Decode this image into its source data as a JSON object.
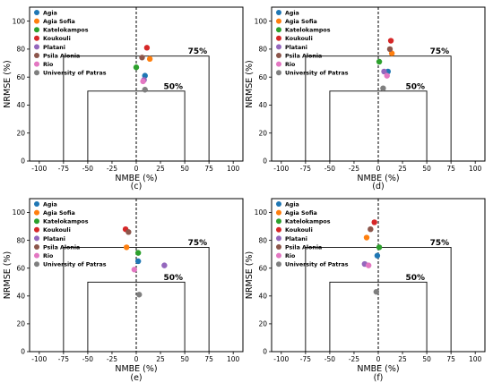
{
  "figure": {
    "legend_labels": [
      "Agia",
      "Agia Sofia",
      "Katelokampos",
      "Koukouli",
      "Platani",
      "Psila Alonia",
      "Rio",
      "University of Patras"
    ],
    "legend_colors": [
      "#1f77b4",
      "#ff7f0e",
      "#2ca02c",
      "#d62728",
      "#9467bd",
      "#8c564b",
      "#e377c2",
      "#7f7f7f"
    ]
  },
  "chart_data": [
    {
      "type": "scatter",
      "panel_label": "(c)",
      "xlabel": "NMBE (%)",
      "ylabel": "NRMSE (%)",
      "xlim": [
        -110,
        110
      ],
      "ylim": [
        0,
        110
      ],
      "xticks": [
        -100,
        -75,
        -50,
        -25,
        0,
        25,
        50,
        75,
        100
      ],
      "yticks": [
        0,
        20,
        40,
        60,
        80,
        100
      ],
      "threshold_labels": [
        "75%",
        "50%"
      ],
      "legend": "top-left",
      "series": [
        {
          "name": "Agia",
          "x": 9,
          "y": 61
        },
        {
          "name": "Agia Sofia",
          "x": 14,
          "y": 73
        },
        {
          "name": "Katelokampos",
          "x": 0,
          "y": 67
        },
        {
          "name": "Koukouli",
          "x": 11,
          "y": 81
        },
        {
          "name": "Platani",
          "x": 8,
          "y": 58
        },
        {
          "name": "Psila Alonia",
          "x": 6,
          "y": 74
        },
        {
          "name": "Rio",
          "x": 7,
          "y": 57
        },
        {
          "name": "University of Patras",
          "x": 9,
          "y": 51
        }
      ]
    },
    {
      "type": "scatter",
      "panel_label": "(d)",
      "xlabel": "NMBE (%)",
      "ylabel": "NRMSE (%)",
      "xlim": [
        -110,
        110
      ],
      "ylim": [
        0,
        110
      ],
      "xticks": [
        -100,
        -75,
        -50,
        -25,
        0,
        25,
        50,
        75,
        100
      ],
      "yticks": [
        0,
        20,
        40,
        60,
        80,
        100
      ],
      "threshold_labels": [
        "75%",
        "50%"
      ],
      "legend": "top-left",
      "series": [
        {
          "name": "Agia",
          "x": 10,
          "y": 64
        },
        {
          "name": "Agia Sofia",
          "x": 14,
          "y": 77
        },
        {
          "name": "Katelokampos",
          "x": 1,
          "y": 71
        },
        {
          "name": "Koukouli",
          "x": 13,
          "y": 86
        },
        {
          "name": "Platani",
          "x": 6,
          "y": 64
        },
        {
          "name": "Psila Alonia",
          "x": 12,
          "y": 80
        },
        {
          "name": "Rio",
          "x": 9,
          "y": 61
        },
        {
          "name": "University of Patras",
          "x": 5,
          "y": 52
        }
      ]
    },
    {
      "type": "scatter",
      "panel_label": "(e)",
      "xlabel": "NMBE (%)",
      "ylabel": "NRMSE (%)",
      "xlim": [
        -110,
        110
      ],
      "ylim": [
        0,
        110
      ],
      "xticks": [
        -100,
        -75,
        -50,
        -25,
        0,
        25,
        50,
        75,
        100
      ],
      "yticks": [
        0,
        20,
        40,
        60,
        80,
        100
      ],
      "threshold_labels": [
        "75%",
        "50%"
      ],
      "legend": "top-left",
      "series": [
        {
          "name": "Agia",
          "x": 2,
          "y": 65
        },
        {
          "name": "Agia Sofia",
          "x": -10,
          "y": 75
        },
        {
          "name": "Katelokampos",
          "x": 2,
          "y": 71
        },
        {
          "name": "Koukouli",
          "x": -11,
          "y": 88
        },
        {
          "name": "Platani",
          "x": 29,
          "y": 62
        },
        {
          "name": "Psila Alonia",
          "x": -8,
          "y": 86
        },
        {
          "name": "Rio",
          "x": -2,
          "y": 59
        },
        {
          "name": "University of Patras",
          "x": 3,
          "y": 41
        }
      ]
    },
    {
      "type": "scatter",
      "panel_label": "(f)",
      "xlabel": "NMBE (%)",
      "ylabel": "NRMSE (%)",
      "xlim": [
        -110,
        110
      ],
      "ylim": [
        0,
        110
      ],
      "xticks": [
        -100,
        -75,
        -50,
        -25,
        0,
        25,
        50,
        75,
        100
      ],
      "yticks": [
        0,
        20,
        40,
        60,
        80,
        100
      ],
      "threshold_labels": [
        "75%",
        "50%"
      ],
      "legend": "top-left",
      "series": [
        {
          "name": "Agia",
          "x": -1,
          "y": 69
        },
        {
          "name": "Agia Sofia",
          "x": -12,
          "y": 82
        },
        {
          "name": "Katelokampos",
          "x": 1,
          "y": 75
        },
        {
          "name": "Koukouli",
          "x": -4,
          "y": 93
        },
        {
          "name": "Platani",
          "x": -14,
          "y": 63
        },
        {
          "name": "Psila Alonia",
          "x": -8,
          "y": 88
        },
        {
          "name": "Rio",
          "x": -10,
          "y": 62
        },
        {
          "name": "University of Patras",
          "x": -2,
          "y": 43
        }
      ]
    }
  ]
}
